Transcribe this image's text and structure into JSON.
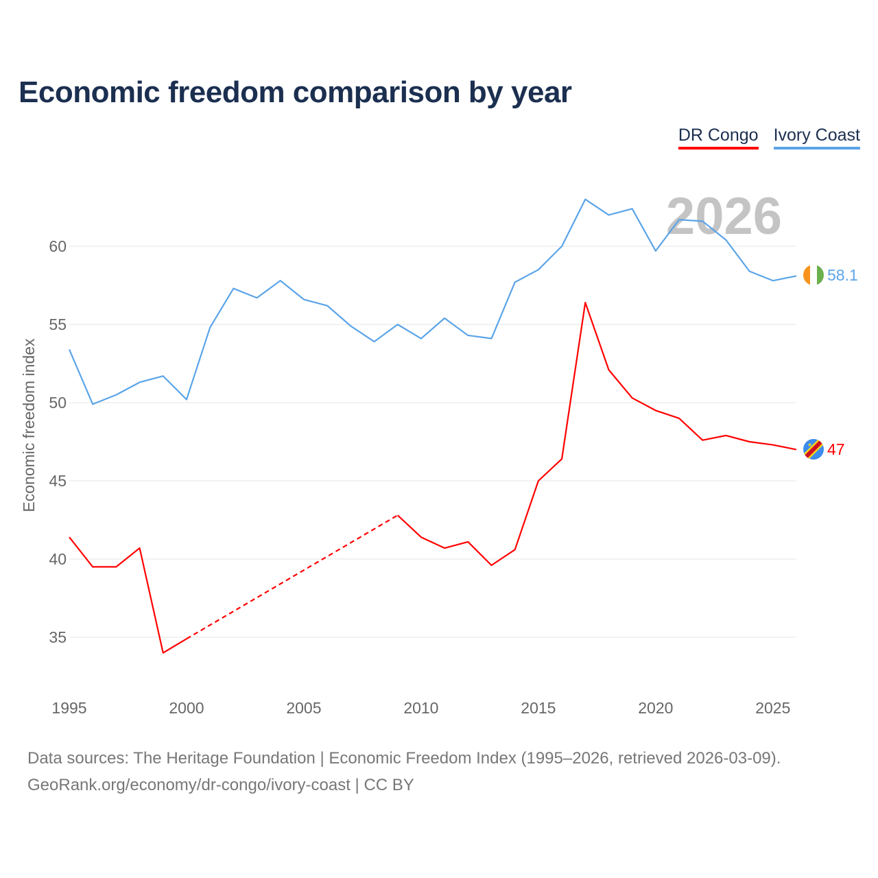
{
  "chart_data": {
    "type": "line",
    "title": "Economic freedom comparison by year",
    "xlabel": "",
    "ylabel": "Economic freedom index",
    "xlim": [
      1995,
      2026
    ],
    "ylim": [
      32,
      64
    ],
    "yticks": [
      35,
      40,
      45,
      50,
      55,
      60
    ],
    "xticks": [
      1995,
      2000,
      2005,
      2010,
      2015,
      2020,
      2025
    ],
    "grid": true,
    "legend_position": "top-right",
    "year_watermark": "2026",
    "x": [
      1995,
      1996,
      1997,
      1998,
      1999,
      2000,
      2001,
      2002,
      2003,
      2004,
      2005,
      2006,
      2007,
      2008,
      2009,
      2010,
      2011,
      2012,
      2013,
      2014,
      2015,
      2016,
      2017,
      2018,
      2019,
      2020,
      2021,
      2022,
      2023,
      2024,
      2025,
      2026
    ],
    "series": [
      {
        "name": "DR Congo",
        "color": "#ff0000",
        "end_label": "47",
        "values": [
          41.4,
          39.5,
          39.5,
          40.7,
          34.0,
          34.9,
          null,
          null,
          null,
          null,
          null,
          null,
          null,
          null,
          42.8,
          41.4,
          40.7,
          41.1,
          39.6,
          40.6,
          45.0,
          46.4,
          56.4,
          52.1,
          50.3,
          49.5,
          49.0,
          47.6,
          47.9,
          47.5,
          47.3,
          47.0
        ]
      },
      {
        "name": "Ivory Coast",
        "color": "#5ba4e8",
        "end_label": "58.1",
        "values": [
          53.4,
          49.9,
          50.5,
          51.3,
          51.7,
          50.2,
          54.8,
          57.3,
          56.7,
          57.8,
          56.6,
          56.2,
          54.9,
          53.9,
          55.0,
          54.1,
          55.4,
          54.3,
          54.1,
          57.7,
          58.5,
          60.0,
          63.0,
          62.0,
          62.4,
          59.7,
          61.7,
          61.6,
          60.4,
          58.4,
          57.8,
          58.1
        ]
      }
    ]
  },
  "footer": {
    "line1": "Data sources: The Heritage Foundation | Economic Freedom Index (1995–2026, retrieved 2026-03-09).",
    "line2": "GeoRank.org/economy/dr-congo/ivory-coast | CC BY"
  }
}
